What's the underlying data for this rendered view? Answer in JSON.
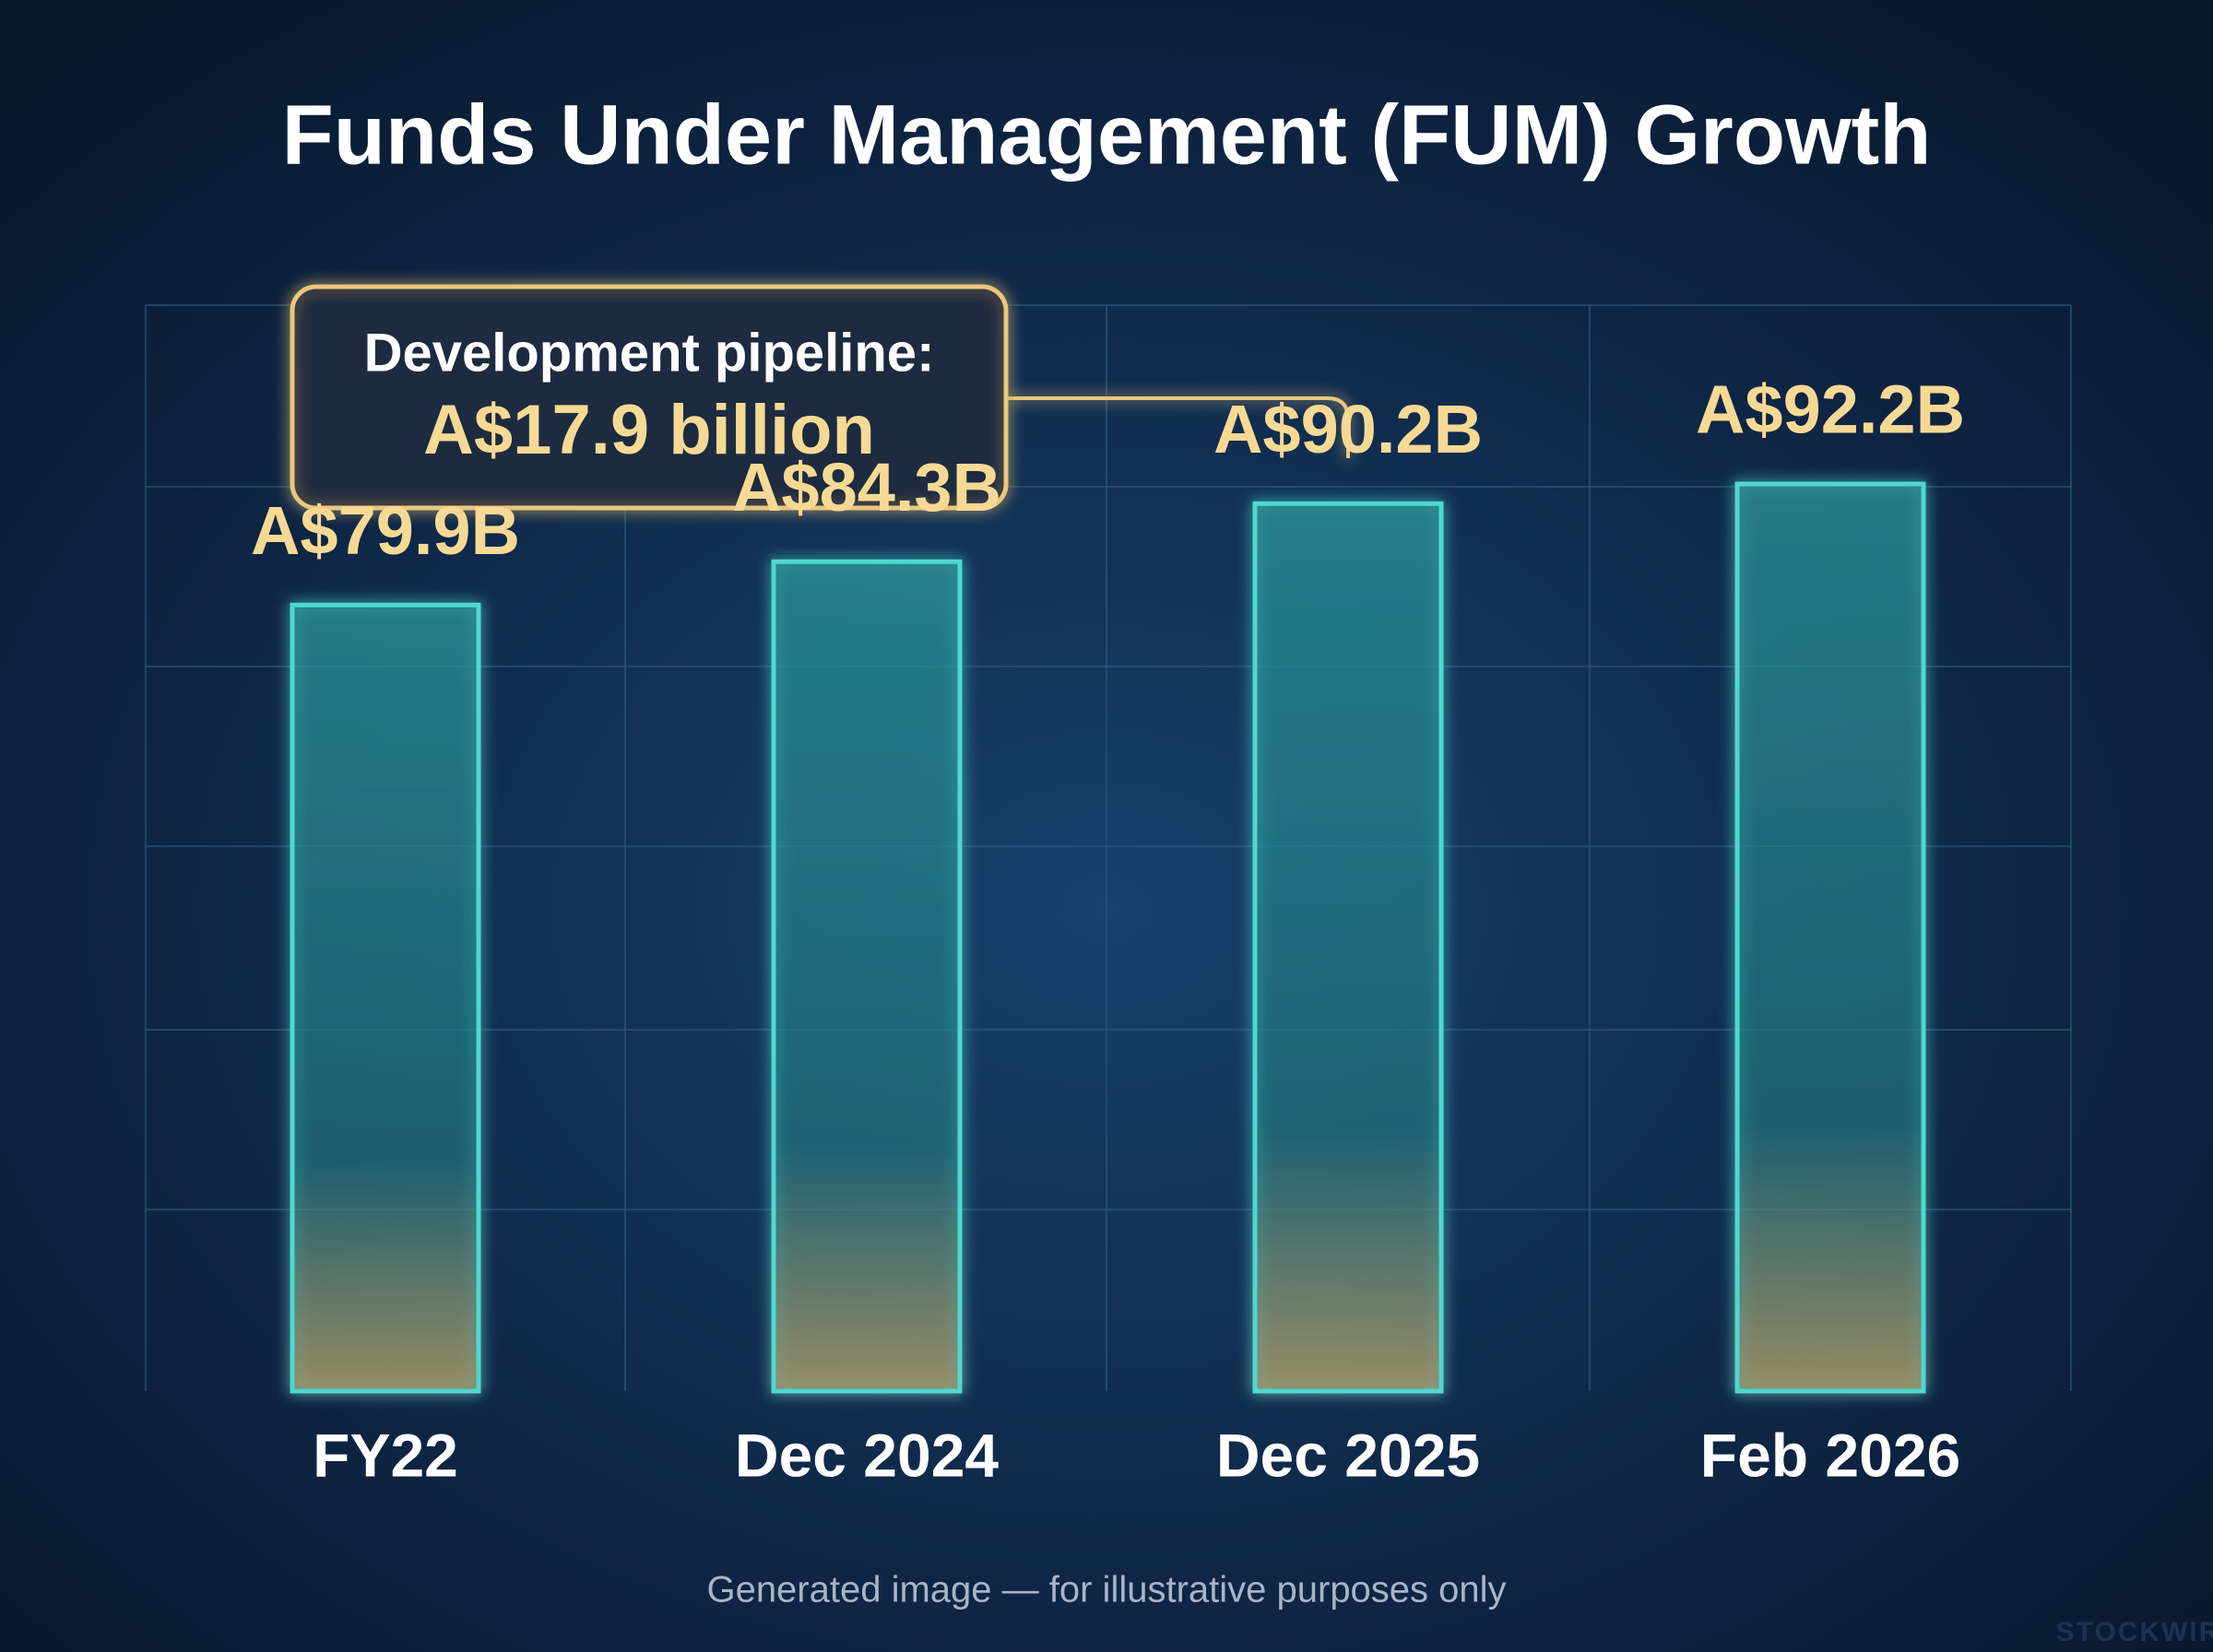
{
  "chart_data": {
    "type": "bar",
    "title": "Funds Under Management (FUM) Growth",
    "categories": [
      "FY22",
      "Dec 2024",
      "Dec 2025",
      "Feb 2026"
    ],
    "values": [
      79.9,
      84.3,
      90.2,
      92.2
    ],
    "value_labels": [
      "A$79.9B",
      "A$84.3B",
      "A$90.2B",
      "A$92.2B"
    ],
    "color": "#4fd8cf",
    "annotation": {
      "label": "Development pipeline:",
      "value": "A$17.9 billion"
    },
    "footnote": "Generated image — for illustrative purposes only",
    "watermark": "STOCKWIRE"
  }
}
